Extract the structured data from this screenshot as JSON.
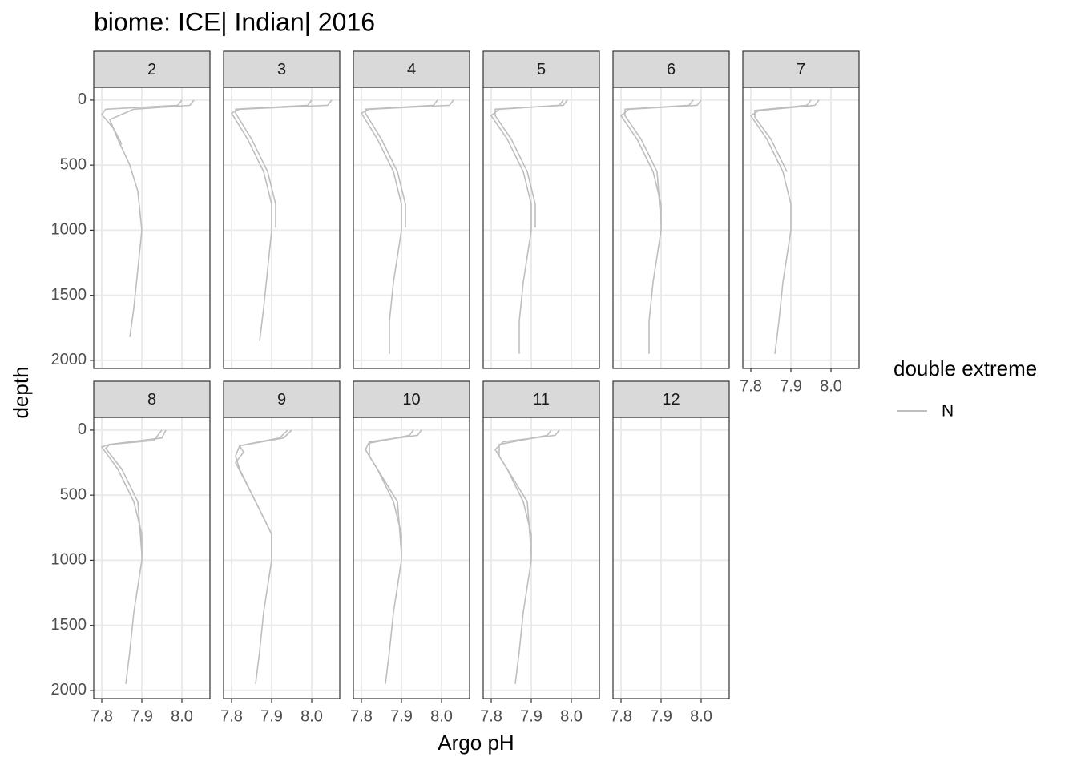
{
  "chart_data": {
    "type": "line",
    "title": "biome: ICE| Indian| 2016",
    "x_label": "Argo pH",
    "y_label": "depth",
    "legend_title": "double extreme",
    "series_name": "N",
    "color": "#bebebe",
    "xlim": [
      7.78,
      8.07
    ],
    "xticks": [
      7.8,
      7.9,
      {
        "value": 8,
        "label": "8.0"
      }
    ],
    "ylim": [
      2062,
      -98
    ],
    "yticks": [
      0,
      500,
      1000,
      1500,
      2000
    ],
    "grid": true,
    "facets": [
      {
        "label": "2",
        "lines": [
          {
            "ph": [
              8.03,
              8.02,
              7.88,
              7.82,
              7.84,
              7.87,
              7.89,
              7.9,
              7.89,
              7.88,
              7.87
            ],
            "depth": [
              0,
              40,
              70,
              150,
              300,
              500,
              700,
              1000,
              1300,
              1600,
              1820
            ]
          },
          {
            "ph": [
              8.0,
              7.99,
              7.81,
              7.8,
              7.83,
              7.85
            ],
            "depth": [
              0,
              40,
              70,
              110,
              220,
              340
            ]
          }
        ]
      },
      {
        "label": "3",
        "lines": [
          {
            "ph": [
              8.05,
              8.04,
              7.82,
              7.8,
              7.84,
              7.88,
              7.9,
              7.9,
              7.89,
              7.88,
              7.87
            ],
            "depth": [
              0,
              40,
              70,
              100,
              300,
              550,
              800,
              1000,
              1300,
              1600,
              1850
            ]
          },
          {
            "ph": [
              8.0,
              7.99,
              7.81,
              7.81,
              7.85,
              7.89,
              7.91,
              7.91
            ],
            "depth": [
              0,
              40,
              70,
              100,
              300,
              550,
              800,
              980
            ]
          }
        ]
      },
      {
        "label": "4",
        "lines": [
          {
            "ph": [
              8.03,
              8.02,
              7.82,
              7.8,
              7.84,
              7.88,
              7.9,
              7.9,
              7.88,
              7.87,
              7.87
            ],
            "depth": [
              0,
              40,
              70,
              100,
              300,
              550,
              800,
              1000,
              1400,
              1700,
              1950
            ]
          },
          {
            "ph": [
              7.99,
              7.98,
              7.81,
              7.81,
              7.85,
              7.89,
              7.91,
              7.91
            ],
            "depth": [
              0,
              40,
              70,
              100,
              300,
              550,
              800,
              980
            ]
          }
        ]
      },
      {
        "label": "5",
        "lines": [
          {
            "ph": [
              7.98,
              7.97,
              7.82,
              7.8,
              7.84,
              7.88,
              7.9,
              7.9,
              7.88,
              7.87,
              7.87
            ],
            "depth": [
              0,
              40,
              70,
              120,
              300,
              550,
              800,
              1000,
              1400,
              1700,
              1950
            ]
          },
          {
            "ph": [
              7.99,
              7.98,
              7.81,
              7.81,
              7.85,
              7.89,
              7.91,
              7.91
            ],
            "depth": [
              0,
              40,
              70,
              120,
              300,
              550,
              800,
              980
            ]
          }
        ]
      },
      {
        "label": "6",
        "lines": [
          {
            "ph": [
              8.0,
              7.99,
              7.82,
              7.8,
              7.84,
              7.88,
              7.9,
              7.9,
              7.88,
              7.87,
              7.87
            ],
            "depth": [
              0,
              40,
              70,
              120,
              300,
              550,
              800,
              1000,
              1400,
              1700,
              1950
            ]
          },
          {
            "ph": [
              7.98,
              7.97,
              7.81,
              7.81,
              7.85,
              7.89,
              7.9
            ],
            "depth": [
              0,
              40,
              70,
              120,
              300,
              550,
              950
            ]
          }
        ]
      },
      {
        "label": "7",
        "lines": [
          {
            "ph": [
              7.97,
              7.96,
              7.82,
              7.8,
              7.84,
              7.88,
              7.9,
              7.9,
              7.88,
              7.87,
              7.86
            ],
            "depth": [
              0,
              40,
              80,
              120,
              300,
              550,
              800,
              1000,
              1400,
              1700,
              1950
            ]
          },
          {
            "ph": [
              7.95,
              7.94,
              7.81,
              7.81,
              7.85,
              7.89
            ],
            "depth": [
              0,
              40,
              80,
              130,
              300,
              550
            ]
          }
        ]
      },
      {
        "label": "8",
        "lines": [
          {
            "ph": [
              7.96,
              7.95,
              7.82,
              7.8,
              7.84,
              7.88,
              7.9,
              7.9,
              7.88,
              7.87,
              7.86
            ],
            "depth": [
              0,
              60,
              110,
              130,
              300,
              550,
              800,
              1000,
              1400,
              1700,
              1950
            ]
          },
          {
            "ph": [
              7.95,
              7.93,
              7.82,
              7.81,
              7.85,
              7.89,
              7.9
            ],
            "depth": [
              0,
              80,
              110,
              140,
              300,
              550,
              950
            ]
          }
        ]
      },
      {
        "label": "9",
        "lines": [
          {
            "ph": [
              7.95,
              7.93,
              7.82,
              7.81,
              7.82,
              7.86,
              7.9,
              7.9,
              7.88,
              7.87,
              7.86
            ],
            "depth": [
              0,
              60,
              120,
              200,
              300,
              550,
              800,
              1000,
              1400,
              1700,
              1950
            ]
          },
          {
            "ph": [
              7.94,
              7.92,
              7.82,
              7.83,
              7.81,
              7.86,
              7.9,
              7.9
            ],
            "depth": [
              0,
              60,
              120,
              170,
              250,
              550,
              800,
              980
            ]
          }
        ]
      },
      {
        "label": "10",
        "lines": [
          {
            "ph": [
              7.95,
              7.94,
              7.82,
              7.81,
              7.84,
              7.88,
              7.9,
              7.9,
              7.88,
              7.87,
              7.86
            ],
            "depth": [
              0,
              40,
              90,
              150,
              300,
              550,
              800,
              1000,
              1400,
              1700,
              1950
            ]
          },
          {
            "ph": [
              7.93,
              7.92,
              7.82,
              7.82,
              7.85,
              7.89,
              7.9
            ],
            "depth": [
              0,
              40,
              100,
              200,
              350,
              550,
              950
            ]
          }
        ]
      },
      {
        "label": "11",
        "lines": [
          {
            "ph": [
              7.97,
              7.96,
              7.83,
              7.81,
              7.84,
              7.88,
              7.9,
              7.9,
              7.88,
              7.87,
              7.86
            ],
            "depth": [
              0,
              40,
              90,
              150,
              300,
              550,
              800,
              1000,
              1400,
              1700,
              1950
            ]
          },
          {
            "ph": [
              7.95,
              7.94,
              7.82,
              7.82,
              7.85,
              7.89,
              7.9
            ],
            "depth": [
              0,
              40,
              110,
              200,
              350,
              550,
              950
            ]
          }
        ]
      },
      {
        "label": "12",
        "lines": []
      }
    ]
  }
}
